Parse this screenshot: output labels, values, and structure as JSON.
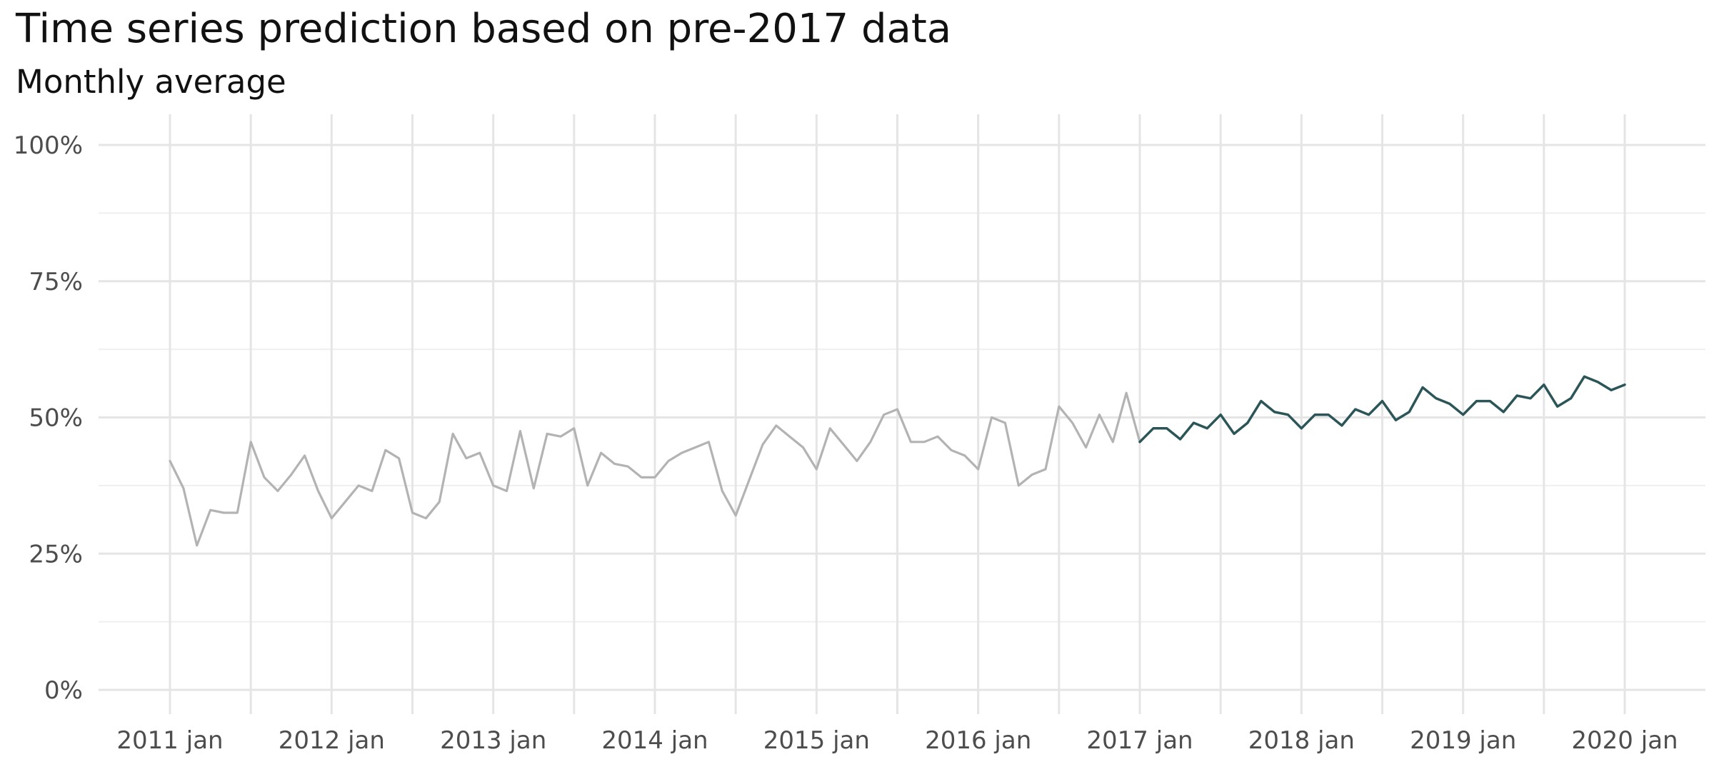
{
  "chart_data": {
    "type": "line",
    "title": "Time series prediction based on pre-2017 data",
    "subtitle": "Monthly average",
    "ylim": [
      0,
      1
    ],
    "y_ticks": [
      {
        "value": 0,
        "label": "0%"
      },
      {
        "value": 0.25,
        "label": "25%"
      },
      {
        "value": 0.5,
        "label": "50%"
      },
      {
        "value": 0.75,
        "label": "75%"
      },
      {
        "value": 1,
        "label": "100%"
      }
    ],
    "x_ticks": [
      {
        "value": "2011-01",
        "label": "2011 jan"
      },
      {
        "value": "2012-01",
        "label": "2012 jan"
      },
      {
        "value": "2013-01",
        "label": "2013 jan"
      },
      {
        "value": "2014-01",
        "label": "2014 jan"
      },
      {
        "value": "2015-01",
        "label": "2015 jan"
      },
      {
        "value": "2016-01",
        "label": "2016 jan"
      },
      {
        "value": "2017-01",
        "label": "2017 jan"
      },
      {
        "value": "2018-01",
        "label": "2018 jan"
      },
      {
        "value": "2019-01",
        "label": "2019 jan"
      },
      {
        "value": "2020-01",
        "label": "2020 jan"
      }
    ],
    "grid": true,
    "legend": "none",
    "series": [
      {
        "color": "#b3b3b3",
        "x": [
          "2011-01",
          "2011-02",
          "2011-03",
          "2011-04",
          "2011-05",
          "2011-06",
          "2011-07",
          "2011-08",
          "2011-09",
          "2011-10",
          "2011-11",
          "2011-12",
          "2012-01",
          "2012-02",
          "2012-03",
          "2012-04",
          "2012-05",
          "2012-06",
          "2012-07",
          "2012-08",
          "2012-09",
          "2012-10",
          "2012-11",
          "2012-12",
          "2013-01",
          "2013-02",
          "2013-03",
          "2013-04",
          "2013-05",
          "2013-06",
          "2013-07",
          "2013-08",
          "2013-09",
          "2013-10",
          "2013-11",
          "2013-12",
          "2014-01",
          "2014-02",
          "2014-03",
          "2014-04",
          "2014-05",
          "2014-06",
          "2014-07",
          "2014-08",
          "2014-09",
          "2014-10",
          "2014-11",
          "2014-12",
          "2015-01",
          "2015-02",
          "2015-03",
          "2015-04",
          "2015-05",
          "2015-06",
          "2015-07",
          "2015-08",
          "2015-09",
          "2015-10",
          "2015-11",
          "2015-12",
          "2016-01",
          "2016-02",
          "2016-03",
          "2016-04",
          "2016-05",
          "2016-06",
          "2016-07",
          "2016-08",
          "2016-09",
          "2016-10",
          "2016-11",
          "2016-12",
          "2017-01"
        ],
        "values": [
          0.42,
          0.37,
          0.265,
          0.33,
          0.325,
          0.325,
          0.455,
          0.39,
          0.365,
          0.395,
          0.43,
          0.365,
          0.315,
          0.345,
          0.375,
          0.365,
          0.44,
          0.425,
          0.325,
          0.315,
          0.345,
          0.47,
          0.425,
          0.435,
          0.375,
          0.365,
          0.475,
          0.37,
          0.47,
          0.465,
          0.48,
          0.375,
          0.435,
          0.415,
          0.41,
          0.39,
          0.39,
          0.42,
          0.435,
          0.445,
          0.455,
          0.365,
          0.32,
          0.385,
          0.45,
          0.485,
          0.465,
          0.445,
          0.405,
          0.48,
          0.45,
          0.42,
          0.455,
          0.505,
          0.515,
          0.455,
          0.455,
          0.465,
          0.44,
          0.43,
          0.405,
          0.5,
          0.49,
          0.375,
          0.395,
          0.405,
          0.52,
          0.49,
          0.445,
          0.505,
          0.455,
          0.545,
          0.455
        ]
      },
      {
        "color": "#2b5557",
        "x": [
          "2017-01",
          "2017-02",
          "2017-03",
          "2017-04",
          "2017-05",
          "2017-06",
          "2017-07",
          "2017-08",
          "2017-09",
          "2017-10",
          "2017-11",
          "2017-12",
          "2018-01",
          "2018-02",
          "2018-03",
          "2018-04",
          "2018-05",
          "2018-06",
          "2018-07",
          "2018-08",
          "2018-09",
          "2018-10",
          "2018-11",
          "2018-12",
          "2019-01",
          "2019-02",
          "2019-03",
          "2019-04",
          "2019-05",
          "2019-06",
          "2019-07",
          "2019-08",
          "2019-09",
          "2019-10",
          "2019-11",
          "2019-12",
          "2020-01"
        ],
        "values": [
          0.455,
          0.48,
          0.48,
          0.46,
          0.49,
          0.48,
          0.505,
          0.47,
          0.49,
          0.53,
          0.51,
          0.505,
          0.48,
          0.505,
          0.505,
          0.485,
          0.515,
          0.505,
          0.53,
          0.495,
          0.51,
          0.555,
          0.535,
          0.525,
          0.505,
          0.53,
          0.53,
          0.51,
          0.54,
          0.535,
          0.56,
          0.52,
          0.535,
          0.575,
          0.565,
          0.55,
          0.56
        ]
      }
    ]
  }
}
